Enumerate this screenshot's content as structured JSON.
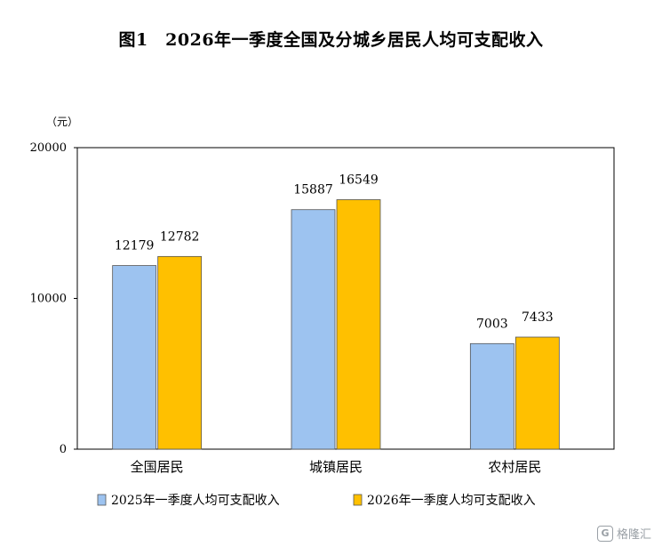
{
  "chart_data": {
    "type": "bar",
    "title": "图1　2026年一季度全国及分城乡居民人均可支配收入",
    "ylabel": "（元）",
    "xlabel": "",
    "categories": [
      "全国居民",
      "城镇居民",
      "农村居民"
    ],
    "series": [
      {
        "name": "2025年一季度人均可支配收入",
        "values": [
          12179,
          15887,
          7003
        ],
        "color": "#9dc3f0"
      },
      {
        "name": "2026年一季度人均可支配收入",
        "values": [
          12782,
          16549,
          7433
        ],
        "color": "#ffc000"
      }
    ],
    "ylim": [
      0,
      20000
    ],
    "yticks": [
      "0",
      "10000",
      "20000"
    ],
    "legend_position": "bottom",
    "grid": false
  },
  "watermark": {
    "text": "格隆汇",
    "logo": "G"
  }
}
